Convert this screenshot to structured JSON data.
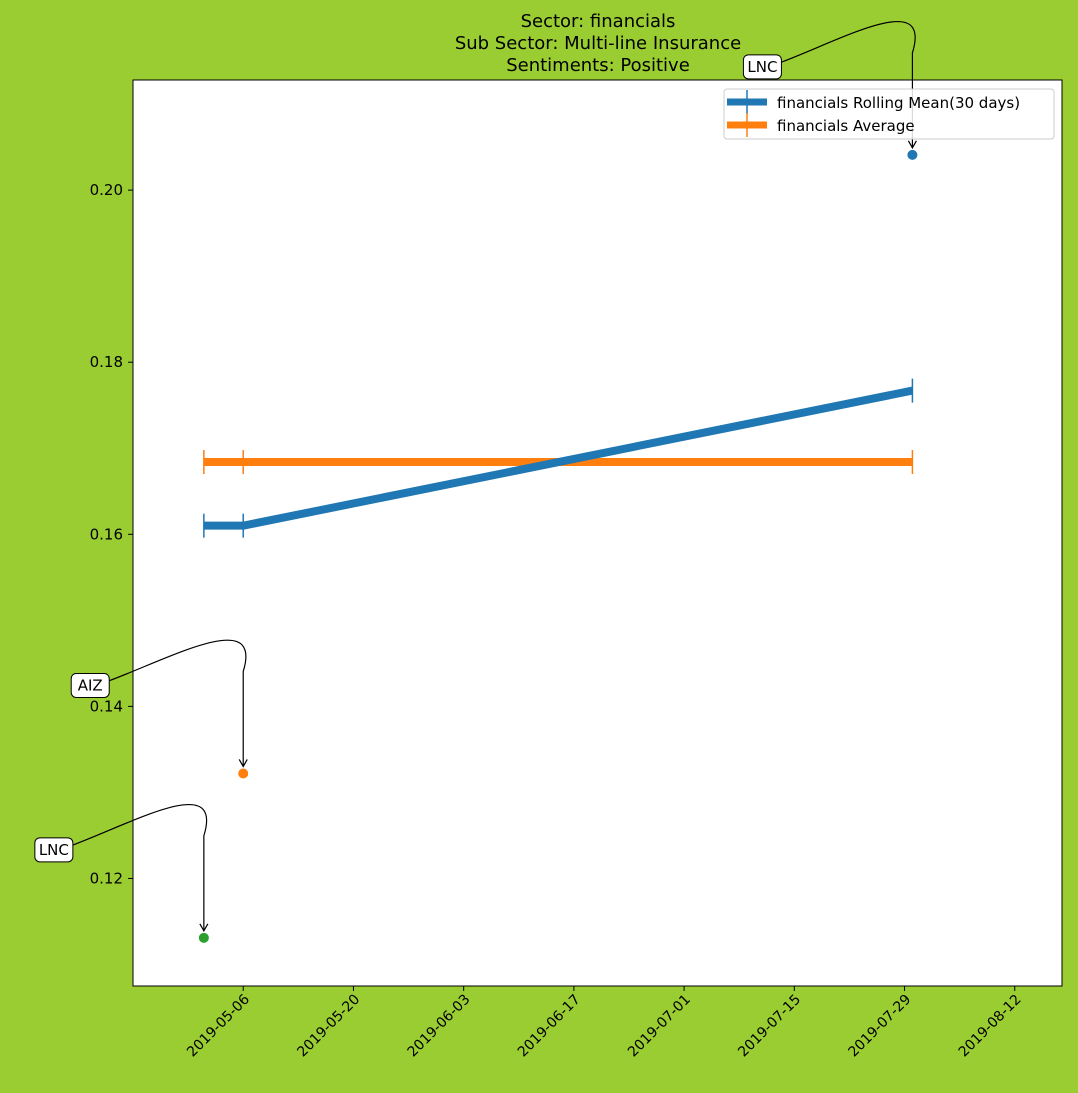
{
  "chart_data": {
    "type": "line",
    "title_lines": [
      "Sector:  financials",
      "Sub Sector:  Multi-line Insurance",
      "Sentiments:  Positive"
    ],
    "xlabel": "",
    "ylabel": "",
    "x_tick_labels": [
      "2019-05-06",
      "2019-05-20",
      "2019-06-03",
      "2019-06-17",
      "2019-07-01",
      "2019-07-15",
      "2019-07-29",
      "2019-08-12"
    ],
    "y_tick_labels": [
      "0.12",
      "0.14",
      "0.16",
      "0.18",
      "0.20"
    ],
    "xlim": [
      "2019-04-22",
      "2019-08-18"
    ],
    "ylim": [
      0.1075,
      0.2128
    ],
    "grid": false,
    "legend_position": "upper right",
    "series": [
      {
        "name": "financials Rolling Mean(30 days)",
        "color": "#1f77b4",
        "marker": "|",
        "points": [
          {
            "x": "2019-05-01",
            "y": 0.161
          },
          {
            "x": "2019-05-06",
            "y": 0.161
          },
          {
            "x": "2019-07-30",
            "y": 0.1767
          }
        ]
      },
      {
        "name": "financials Average",
        "color": "#ff7f0e",
        "marker": "|",
        "points": [
          {
            "x": "2019-05-01",
            "y": 0.1684
          },
          {
            "x": "2019-05-06",
            "y": 0.1684
          },
          {
            "x": "2019-07-30",
            "y": 0.1684
          }
        ]
      }
    ],
    "scatter_points": [
      {
        "x": "2019-07-30",
        "y": 0.2041,
        "color": "#1f77b4",
        "label": "LNC"
      },
      {
        "x": "2019-05-06",
        "y": 0.1322,
        "color": "#ff7f0e",
        "label": "AIZ"
      },
      {
        "x": "2019-05-01",
        "y": 0.1131,
        "color": "#2ca02c",
        "label": "LNC"
      }
    ]
  }
}
